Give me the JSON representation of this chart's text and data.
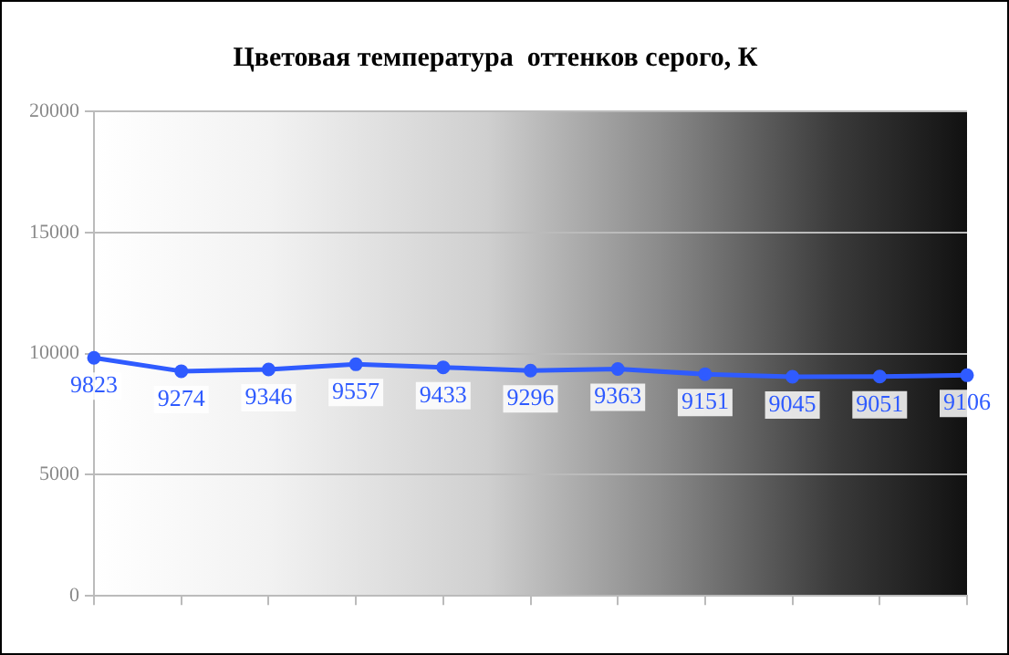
{
  "chart_data": {
    "type": "line",
    "title": "Цветовая температура  оттенков серого, К",
    "categories": [
      null,
      null,
      null,
      null,
      null,
      null,
      null,
      null,
      null,
      null,
      null
    ],
    "series": [
      {
        "color": "#2f5bff",
        "values": [
          9823,
          9274,
          9346,
          9557,
          9433,
          9296,
          9363,
          9151,
          9045,
          9051,
          9106
        ]
      }
    ],
    "ylim": [
      0,
      20000
    ],
    "yticks": [
      0,
      5000,
      10000,
      15000,
      20000
    ],
    "grid": "y",
    "legend": false,
    "marker": "circle",
    "data_labels": true
  }
}
